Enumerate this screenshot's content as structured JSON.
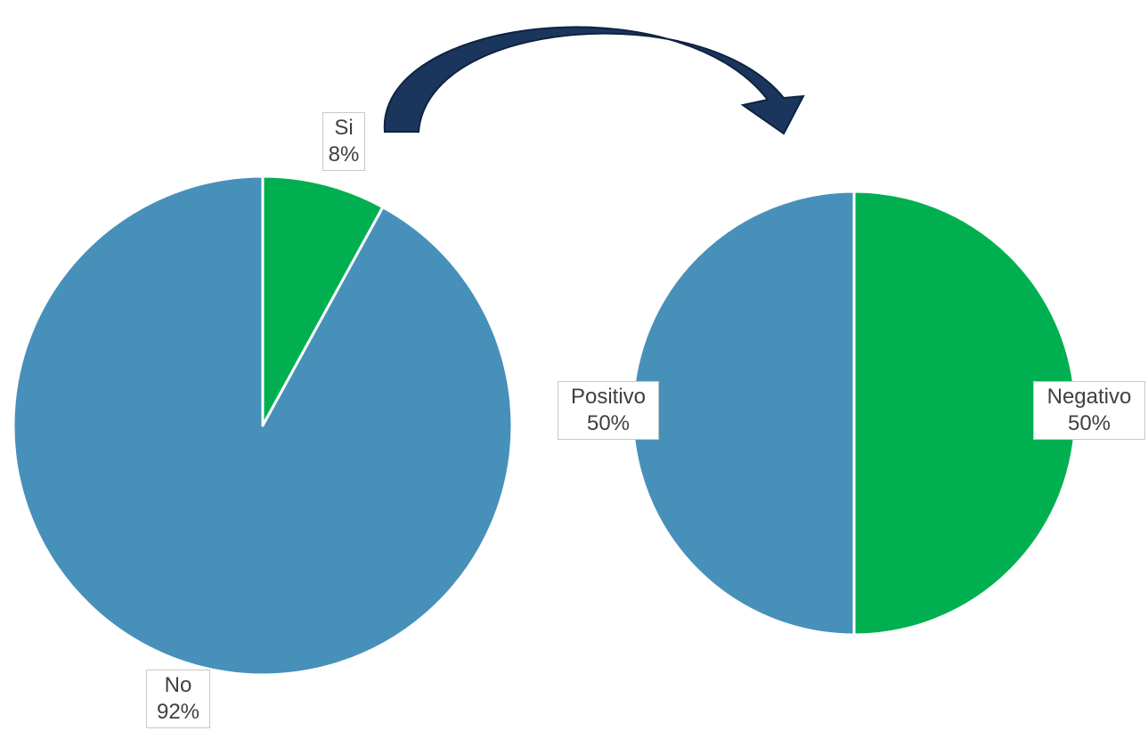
{
  "colors": {
    "blue": "#4790BA",
    "green": "#00B050",
    "arrow": "#1B365D"
  },
  "chart_data": [
    {
      "type": "pie",
      "title": "",
      "slices": [
        {
          "label": "Si",
          "value": 8,
          "value_label": "8%",
          "color": "#00B050"
        },
        {
          "label": "No",
          "value": 92,
          "value_label": "92%",
          "color": "#4790BA"
        }
      ]
    },
    {
      "type": "pie",
      "title": "",
      "slices": [
        {
          "label": "Negativo",
          "value": 50,
          "value_label": "50%",
          "color": "#00B050"
        },
        {
          "label": "Positivo",
          "value": 50,
          "value_label": "50%",
          "color": "#4790BA"
        }
      ]
    }
  ],
  "connector": {
    "icon": "curved-arrow-icon",
    "from": "Si",
    "to": "chart-2"
  }
}
